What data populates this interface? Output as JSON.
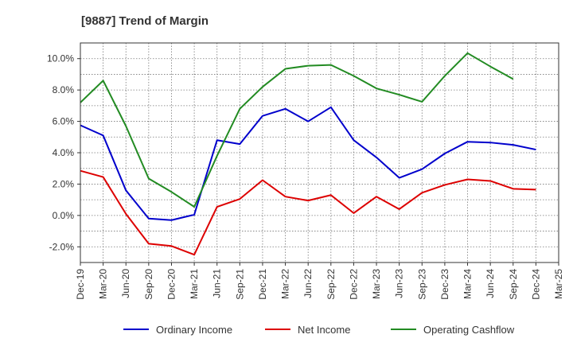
{
  "chart_data": {
    "type": "line",
    "title": "[9887]  Trend of Margin",
    "xlabel": "",
    "ylabel": "",
    "categories": [
      "Dec-19",
      "Mar-20",
      "Jun-20",
      "Sep-20",
      "Dec-20",
      "Mar-21",
      "Jun-21",
      "Sep-21",
      "Dec-21",
      "Mar-22",
      "Jun-22",
      "Sep-22",
      "Dec-22",
      "Mar-23",
      "Jun-23",
      "Sep-23",
      "Dec-23",
      "Mar-24",
      "Jun-24",
      "Sep-24",
      "Dec-24",
      "Mar-25"
    ],
    "ylim": [
      -3.0,
      11.0
    ],
    "yticks": [
      -2.0,
      0.0,
      2.0,
      4.0,
      6.0,
      8.0,
      10.0
    ],
    "ytick_labels": [
      "-2.0%",
      "0.0%",
      "2.0%",
      "4.0%",
      "6.0%",
      "8.0%",
      "10.0%"
    ],
    "grid": true,
    "legend_position": "bottom",
    "series": [
      {
        "name": "Ordinary Income",
        "color": "#0000cc",
        "values": [
          5.75,
          5.1,
          1.6,
          -0.2,
          -0.3,
          0.05,
          4.8,
          4.55,
          6.35,
          6.8,
          6.0,
          6.9,
          4.8,
          3.7,
          2.4,
          2.95,
          3.95,
          4.7,
          4.65,
          4.5,
          4.2,
          null
        ]
      },
      {
        "name": "Net Income",
        "color": "#dd0000",
        "values": [
          2.85,
          2.45,
          0.1,
          -1.8,
          -1.95,
          -2.5,
          0.55,
          1.05,
          2.25,
          1.2,
          0.95,
          1.3,
          0.15,
          1.2,
          0.4,
          1.45,
          1.95,
          2.3,
          2.2,
          1.7,
          1.65,
          null
        ]
      },
      {
        "name": "Operating Cashflow",
        "color": "#228b22",
        "values": [
          7.2,
          8.6,
          5.7,
          2.35,
          1.5,
          0.55,
          3.8,
          6.8,
          8.2,
          9.35,
          9.55,
          9.6,
          8.9,
          8.1,
          7.7,
          7.25,
          8.9,
          10.35,
          9.5,
          8.7,
          null,
          null
        ]
      }
    ]
  }
}
